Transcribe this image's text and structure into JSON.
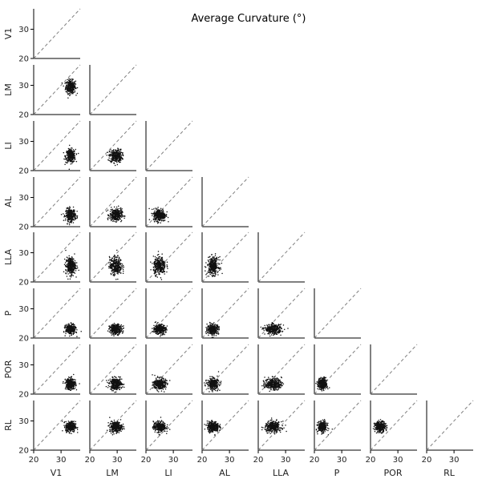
{
  "chart_data": {
    "type": "scatter",
    "title": "Average Curvature (°)",
    "variables": [
      "V1",
      "LM",
      "LI",
      "AL",
      "LLA",
      "P",
      "POR",
      "RL"
    ],
    "axis_range": [
      20,
      37
    ],
    "ticks": [
      20,
      30
    ],
    "diagonal_reference_line": true,
    "grid": false,
    "layout": "lower-triangular pair grid",
    "means": {
      "V1": 33.5,
      "LM": 29.5,
      "LI": 25.0,
      "AL": 24.0,
      "LLA": 25.5,
      "P": 23.0,
      "POR": 23.5,
      "RL": 28.0
    },
    "spreads": {
      "V1": 1.2,
      "LM": 1.5,
      "LI": 1.5,
      "AL": 1.4,
      "LLA": 2.0,
      "P": 1.1,
      "POR": 1.3,
      "RL": 1.2
    },
    "points_per_panel": 320
  }
}
